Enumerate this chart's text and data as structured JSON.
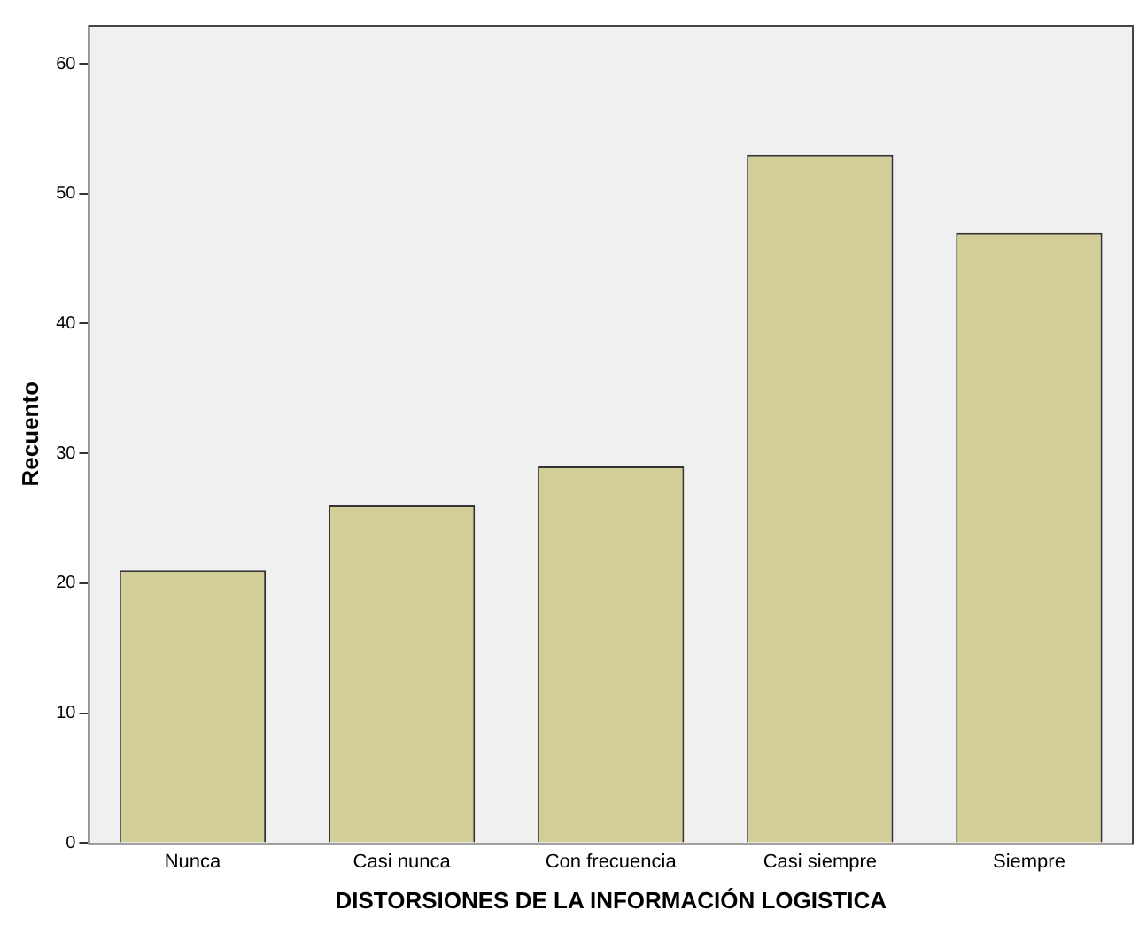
{
  "chart_data": {
    "type": "bar",
    "xlabel": "DISTORSIONES DE LA INFORMACIÓN LOGISTICA",
    "ylabel": "Recuento",
    "categories": [
      "Nunca",
      "Casi nunca",
      "Con frecuencia",
      "Casi siempre",
      "Siempre"
    ],
    "values": [
      21,
      26,
      29,
      53,
      47
    ],
    "color": "#d3ce97",
    "ylim": [
      0,
      63
    ],
    "yticks": [
      0,
      10,
      20,
      30,
      40,
      50,
      60
    ]
  }
}
